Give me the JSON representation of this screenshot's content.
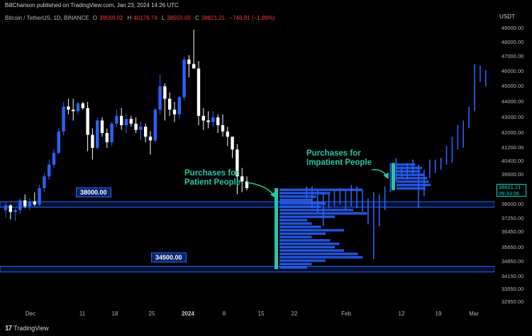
{
  "header": {
    "publish_text": "BillCharison published on TradingView.com, Jan 23, 2024 14:26 UTC",
    "symbol": "Bitcoin / TetherUS, 1D, BINANCE",
    "open_label": "O",
    "open": "39568.02",
    "high_label": "H",
    "high": "40176.74",
    "low_label": "L",
    "low": "38555.00",
    "close_label": "C",
    "close": "38821.21",
    "change": "−746.81 (−1.89%)"
  },
  "price_axis": {
    "currency": "USDT",
    "ticks": [
      "49000.00",
      "48000.00",
      "47000.00",
      "46000.00",
      "45000.00",
      "44000.00",
      "43000.00",
      "42000.00",
      "41200.00",
      "40400.00",
      "39600.00",
      "38800.00",
      "38000.00",
      "37250.00",
      "36450.00",
      "35650.00",
      "34850.00",
      "34150.00",
      "33550.00",
      "32950.00"
    ],
    "current_price": "38821.21",
    "countdown": "09:33:06"
  },
  "time_axis": {
    "ticks": [
      "Dec",
      "11",
      "18",
      "25",
      "2024",
      "8",
      "15",
      "22",
      "Feb",
      "12",
      "19",
      "Mar"
    ],
    "bold": [
      "2024"
    ]
  },
  "levels": [
    {
      "label": "38000.00",
      "value": 38000
    },
    {
      "label": "34500.00",
      "value": 34500
    }
  ],
  "annotations": {
    "patient": "Purchases for\nPatient People",
    "impatient": "Purchases for\nImpatient People"
  },
  "footer": {
    "brand": "TradingView"
  },
  "colors": {
    "up": "#2962ff",
    "down": "#ffffff",
    "accent": "#26c6a6",
    "level": "#2962ff",
    "background": "#000000"
  },
  "chart_data": {
    "type": "candlestick",
    "title": "Bitcoin / TetherUS, 1D, BINANCE",
    "ylim": [
      32700,
      49300
    ],
    "ohlc": [
      [
        37700,
        38100,
        37300,
        37950
      ],
      [
        37950,
        38000,
        37200,
        37600
      ],
      [
        37600,
        37800,
        37100,
        37700
      ],
      [
        37700,
        38300,
        37500,
        38200
      ],
      [
        38200,
        38500,
        37800,
        37900
      ],
      [
        37900,
        38300,
        37700,
        38150
      ],
      [
        38150,
        38600,
        37900,
        38000
      ],
      [
        38000,
        39000,
        37900,
        38800
      ],
      [
        38800,
        39700,
        38600,
        39500
      ],
      [
        39500,
        40500,
        39300,
        40200
      ],
      [
        40200,
        41100,
        40000,
        40900
      ],
      [
        40900,
        42300,
        40800,
        42100
      ],
      [
        42100,
        44000,
        41900,
        43700
      ],
      [
        43700,
        44200,
        43200,
        43500
      ],
      [
        43500,
        44200,
        42800,
        43400
      ],
      [
        43400,
        44000,
        43200,
        43900
      ],
      [
        43900,
        44000,
        43500,
        43600
      ],
      [
        43600,
        44000,
        41000,
        41900
      ],
      [
        41900,
        42300,
        40500,
        41200
      ],
      [
        41200,
        43000,
        41100,
        42800
      ],
      [
        42800,
        43000,
        41800,
        42000
      ],
      [
        42000,
        42300,
        41200,
        41500
      ],
      [
        41500,
        42700,
        41300,
        42600
      ],
      [
        42600,
        43500,
        42400,
        43100
      ],
      [
        43100,
        43600,
        42200,
        42500
      ],
      [
        42500,
        43200,
        42000,
        42900
      ],
      [
        42900,
        43100,
        42400,
        42600
      ],
      [
        42600,
        43000,
        42000,
        42200
      ],
      [
        42200,
        42700,
        41600,
        42400
      ],
      [
        42400,
        42600,
        41500,
        41800
      ],
      [
        41800,
        42100,
        40800,
        41600
      ],
      [
        41600,
        43600,
        41500,
        43500
      ],
      [
        43500,
        45800,
        43200,
        45000
      ],
      [
        45000,
        45200,
        42800,
        44200
      ],
      [
        44200,
        44600,
        43100,
        43500
      ],
      [
        43500,
        44000,
        42700,
        43200
      ],
      [
        43200,
        44400,
        42900,
        44300
      ],
      [
        44300,
        47000,
        44100,
        46800
      ],
      [
        46800,
        47100,
        45600,
        46500
      ],
      [
        46500,
        48900,
        46300,
        46200
      ],
      [
        46200,
        46700,
        42500,
        43100
      ],
      [
        43100,
        43600,
        42200,
        42800
      ],
      [
        42800,
        43400,
        42300,
        42700
      ],
      [
        42700,
        43400,
        42400,
        43000
      ],
      [
        43000,
        43200,
        42000,
        42500
      ],
      [
        42500,
        43200,
        41800,
        42100
      ],
      [
        42100,
        42400,
        41300,
        41800
      ],
      [
        41800,
        41700,
        40600,
        41100
      ],
      [
        41100,
        41400,
        38500,
        39500
      ],
      [
        39500,
        40000,
        38600,
        39200
      ],
      [
        39200,
        39500,
        38700,
        38800
      ]
    ],
    "projection_ticks": [
      [
        38900,
        38300
      ],
      [
        38900,
        37800
      ],
      [
        38700,
        37500
      ],
      [
        38600,
        36800
      ],
      [
        38500,
        37800
      ],
      [
        38700,
        37900
      ],
      [
        38800,
        38000
      ],
      [
        38700,
        37700
      ],
      [
        39000,
        37900
      ],
      [
        38900,
        37800
      ],
      [
        38700,
        37600
      ],
      [
        38300,
        36900
      ],
      [
        38600,
        35000
      ],
      [
        38500,
        36800
      ],
      [
        38900,
        37700
      ],
      [
        40300,
        38600
      ],
      [
        40600,
        39200
      ],
      [
        40100,
        39400
      ],
      [
        40300,
        39300
      ],
      [
        40500,
        39600
      ],
      [
        40200,
        37800
      ],
      [
        39900,
        38400
      ],
      [
        40500,
        39400
      ],
      [
        40500,
        39700
      ],
      [
        40600,
        39900
      ],
      [
        41300,
        40200
      ],
      [
        41800,
        40300
      ],
      [
        42500,
        41100
      ],
      [
        42800,
        41200
      ],
      [
        43700,
        42300
      ],
      [
        46500,
        43400
      ],
      [
        46400,
        45300
      ],
      [
        46100,
        45000
      ]
    ],
    "volume_profiles": [
      {
        "name": "Purchases for Patient People",
        "range": [
          34500,
          38800
        ]
      },
      {
        "name": "Purchases for Impatient People",
        "range": [
          38700,
          40300
        ]
      }
    ]
  }
}
